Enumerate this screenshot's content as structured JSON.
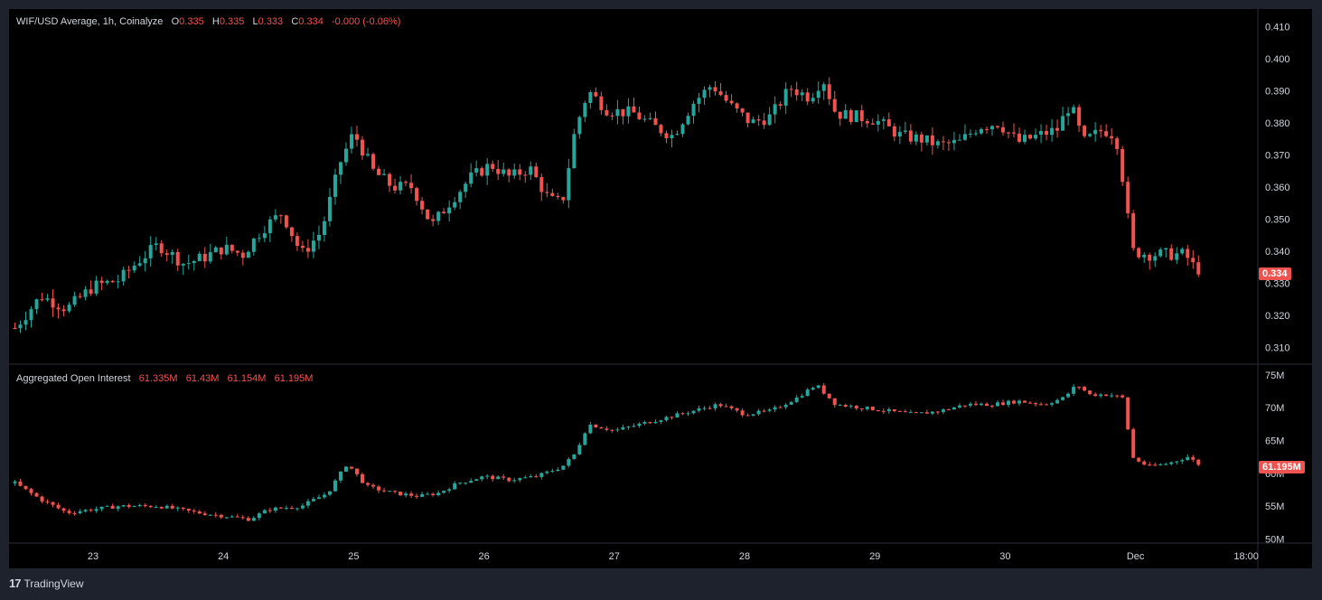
{
  "colors": {
    "up": "#26a69a",
    "down": "#ef5350",
    "background": "#000000",
    "frame": "#1e222d",
    "text": "#d1d4dc",
    "grid": "#2a2e39"
  },
  "branding": {
    "logo_icon": "tradingview-logo-icon",
    "text": "TradingView"
  },
  "price_legend": {
    "symbol": "WIF/USD Average, 1h, Coinalyze",
    "open_label": "O",
    "open": "0.335",
    "high_label": "H",
    "high": "0.335",
    "low_label": "L",
    "low": "0.333",
    "close_label": "C",
    "close": "0.334",
    "change": "-0.000 (-0.06%)"
  },
  "oi_legend": {
    "title": "Aggregated Open Interest",
    "open": "61.335M",
    "high": "61.43M",
    "low": "61.154M",
    "close": "61.195M"
  },
  "price_tag": "0.334",
  "oi_tag": "61.195M",
  "chart_data": [
    {
      "type": "candlestick",
      "title": "WIF/USD Average, 1h, Coinalyze",
      "ylim": [
        0.305,
        0.415
      ],
      "yticks": [
        "0.410",
        "0.400",
        "0.390",
        "0.380",
        "0.370",
        "0.360",
        "0.350",
        "0.340",
        "0.330",
        "0.320",
        "0.310"
      ],
      "xticks": [
        "23",
        "24",
        "25",
        "26",
        "27",
        "28",
        "29",
        "30",
        "Dec",
        "18:00"
      ],
      "xlim": [
        22.4,
        31.9
      ],
      "current_price": 0.334,
      "points": [
        [
          22.4,
          0.316
        ],
        [
          22.6,
          0.326
        ],
        [
          22.8,
          0.322
        ],
        [
          23.0,
          0.329
        ],
        [
          23.2,
          0.331
        ],
        [
          23.35,
          0.337
        ],
        [
          23.5,
          0.342
        ],
        [
          23.7,
          0.336
        ],
        [
          23.85,
          0.338
        ],
        [
          24.0,
          0.341
        ],
        [
          24.15,
          0.339
        ],
        [
          24.3,
          0.347
        ],
        [
          24.45,
          0.352
        ],
        [
          24.6,
          0.339
        ],
        [
          24.75,
          0.346
        ],
        [
          24.9,
          0.368
        ],
        [
          25.0,
          0.377
        ],
        [
          25.15,
          0.365
        ],
        [
          25.3,
          0.36
        ],
        [
          25.45,
          0.36
        ],
        [
          25.6,
          0.348
        ],
        [
          25.75,
          0.356
        ],
        [
          25.9,
          0.363
        ],
        [
          26.05,
          0.367
        ],
        [
          26.2,
          0.363
        ],
        [
          26.35,
          0.366
        ],
        [
          26.5,
          0.356
        ],
        [
          26.6,
          0.355
        ],
        [
          26.7,
          0.378
        ],
        [
          26.8,
          0.39
        ],
        [
          26.95,
          0.384
        ],
        [
          27.15,
          0.383
        ],
        [
          27.3,
          0.379
        ],
        [
          27.45,
          0.376
        ],
        [
          27.6,
          0.386
        ],
        [
          27.75,
          0.392
        ],
        [
          27.9,
          0.385
        ],
        [
          28.05,
          0.38
        ],
        [
          28.2,
          0.382
        ],
        [
          28.35,
          0.391
        ],
        [
          28.5,
          0.388
        ],
        [
          28.6,
          0.394
        ],
        [
          28.7,
          0.383
        ],
        [
          28.85,
          0.382
        ],
        [
          29.0,
          0.381
        ],
        [
          29.2,
          0.376
        ],
        [
          29.35,
          0.375
        ],
        [
          29.5,
          0.373
        ],
        [
          29.65,
          0.374
        ],
        [
          29.8,
          0.379
        ],
        [
          29.95,
          0.38
        ],
        [
          30.1,
          0.374
        ],
        [
          30.25,
          0.376
        ],
        [
          30.4,
          0.378
        ],
        [
          30.5,
          0.386
        ],
        [
          30.6,
          0.374
        ],
        [
          30.75,
          0.378
        ],
        [
          30.85,
          0.376
        ],
        [
          30.92,
          0.358
        ],
        [
          30.97,
          0.34
        ],
        [
          31.1,
          0.339
        ],
        [
          31.25,
          0.339
        ],
        [
          31.38,
          0.339
        ],
        [
          31.45,
          0.335
        ],
        [
          31.5,
          0.334
        ]
      ]
    },
    {
      "type": "candlestick",
      "title": "Aggregated Open Interest",
      "ylim": [
        49.5,
        76.5
      ],
      "yticks": [
        "75M",
        "70M",
        "65M",
        "60M",
        "55M",
        "50M"
      ],
      "current_value": 61.195,
      "points": [
        [
          22.4,
          58.5
        ],
        [
          22.6,
          56.0
        ],
        [
          22.8,
          54.0
        ],
        [
          23.0,
          54.5
        ],
        [
          23.2,
          55.0
        ],
        [
          23.5,
          55.0
        ],
        [
          23.8,
          54.0
        ],
        [
          24.0,
          53.5
        ],
        [
          24.2,
          53.0
        ],
        [
          24.35,
          54.5
        ],
        [
          24.6,
          55.0
        ],
        [
          24.8,
          57.0
        ],
        [
          24.95,
          61.5
        ],
        [
          25.1,
          58.0
        ],
        [
          25.3,
          57.0
        ],
        [
          25.5,
          56.5
        ],
        [
          25.65,
          57.0
        ],
        [
          25.8,
          58.5
        ],
        [
          26.0,
          59.5
        ],
        [
          26.2,
          59.0
        ],
        [
          26.4,
          59.5
        ],
        [
          26.6,
          61.0
        ],
        [
          26.7,
          63.0
        ],
        [
          26.8,
          67.5
        ],
        [
          27.0,
          66.5
        ],
        [
          27.2,
          67.5
        ],
        [
          27.4,
          68.5
        ],
        [
          27.6,
          69.5
        ],
        [
          27.8,
          70.5
        ],
        [
          28.0,
          69.0
        ],
        [
          28.2,
          69.5
        ],
        [
          28.4,
          71.5
        ],
        [
          28.55,
          73.5
        ],
        [
          28.7,
          70.5
        ],
        [
          28.9,
          70.0
        ],
        [
          29.1,
          69.5
        ],
        [
          29.3,
          69.0
        ],
        [
          29.5,
          69.5
        ],
        [
          29.7,
          70.5
        ],
        [
          29.9,
          70.5
        ],
        [
          30.1,
          71.0
        ],
        [
          30.3,
          70.5
        ],
        [
          30.45,
          71.5
        ],
        [
          30.55,
          73.5
        ],
        [
          30.65,
          72.0
        ],
        [
          30.8,
          72.0
        ],
        [
          30.9,
          71.5
        ],
        [
          30.93,
          68.5
        ],
        [
          30.97,
          62.5
        ],
        [
          31.1,
          61.0
        ],
        [
          31.25,
          61.5
        ],
        [
          31.4,
          62.5
        ],
        [
          31.5,
          61.2
        ]
      ]
    }
  ]
}
